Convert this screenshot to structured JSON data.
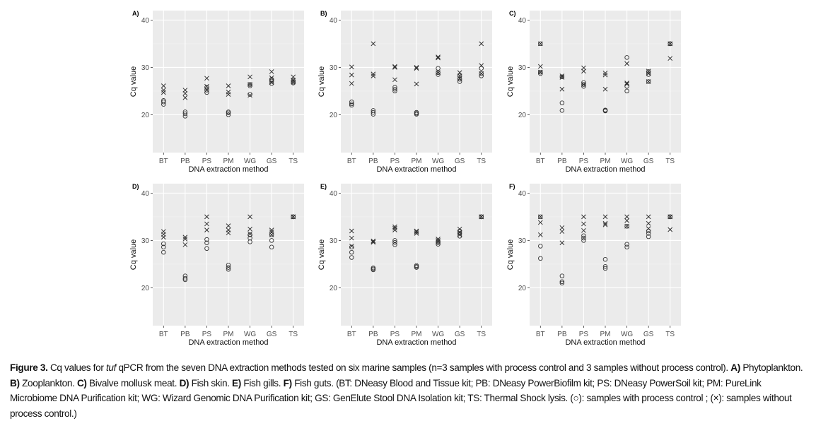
{
  "chart_data": [
    {
      "panel": "A)",
      "type": "scatter",
      "title": "",
      "xlabel": "DNA extraction method",
      "ylabel": "Cq value",
      "categories": [
        "BT",
        "PB",
        "PS",
        "PM",
        "WG",
        "GS",
        "TS"
      ],
      "yticks": [
        20,
        30,
        40
      ],
      "ylim": [
        12,
        42
      ],
      "grid": true,
      "series": [
        {
          "name": "with process control",
          "marker": "circle",
          "values": [
            [
              22.2,
              22.7,
              23.0
            ],
            [
              19.7,
              20.2,
              20.6
            ],
            [
              24.7,
              25.2,
              25.8
            ],
            [
              20.0,
              20.4,
              20.6
            ],
            [
              24.3,
              26.1,
              26.4
            ],
            [
              26.6,
              27.1,
              27.5
            ],
            [
              26.7,
              26.9,
              27.2
            ]
          ]
        },
        {
          "name": "without process control",
          "marker": "cross",
          "values": [
            [
              24.7,
              25.2,
              26.1
            ],
            [
              23.6,
              24.5,
              25.2
            ],
            [
              25.2,
              26.0,
              27.7
            ],
            [
              24.3,
              24.8,
              26.1
            ],
            [
              24.1,
              26.4,
              28.0
            ],
            [
              26.8,
              27.8,
              29.1
            ],
            [
              26.9,
              27.3,
              28.0
            ]
          ]
        }
      ]
    },
    {
      "panel": "B)",
      "type": "scatter",
      "title": "",
      "xlabel": "DNA extraction method",
      "ylabel": "Cq value",
      "categories": [
        "BT",
        "PB",
        "PS",
        "PM",
        "WG",
        "GS",
        "TS"
      ],
      "yticks": [
        20,
        30,
        40
      ],
      "ylim": [
        12,
        42
      ],
      "grid": true,
      "series": [
        {
          "name": "with process control",
          "marker": "circle",
          "values": [
            [
              22.0,
              22.3,
              22.7
            ],
            [
              20.1,
              20.5,
              20.9
            ],
            [
              25.0,
              25.4,
              25.8
            ],
            [
              20.1,
              20.3,
              20.5
            ],
            [
              28.5,
              28.9,
              29.8
            ],
            [
              27.0,
              27.5,
              28.2
            ],
            [
              28.2,
              28.7,
              29.8
            ]
          ]
        },
        {
          "name": "without process control",
          "marker": "cross",
          "values": [
            [
              26.6,
              28.4,
              30.1
            ],
            [
              28.2,
              28.6,
              35.0
            ],
            [
              27.4,
              30.0,
              30.2
            ],
            [
              26.5,
              29.8,
              30.0
            ],
            [
              28.9,
              32.0,
              32.2
            ],
            [
              27.7,
              28.2,
              28.9
            ],
            [
              28.7,
              30.4,
              35.0
            ]
          ]
        }
      ]
    },
    {
      "panel": "C)",
      "type": "scatter",
      "title": "",
      "xlabel": "DNA extraction method",
      "ylabel": "Cq value",
      "categories": [
        "BT",
        "PB",
        "PS",
        "PM",
        "WG",
        "GS",
        "TS"
      ],
      "yticks": [
        20,
        30,
        40
      ],
      "ylim": [
        12,
        42
      ],
      "grid": true,
      "series": [
        {
          "name": "with process control",
          "marker": "circle",
          "values": [
            [
              28.7,
              29.0,
              35.0
            ],
            [
              20.9,
              22.5,
              28.0
            ],
            [
              26.0,
              26.4,
              26.8
            ],
            [
              20.8,
              20.9,
              21.0
            ],
            [
              25.0,
              26.0,
              32.1
            ],
            [
              27.0,
              28.5,
              29.1
            ],
            [
              35.0,
              35.0,
              35.0
            ]
          ]
        },
        {
          "name": "without process control",
          "marker": "cross",
          "values": [
            [
              29.0,
              30.2,
              35.0
            ],
            [
              25.4,
              27.9,
              28.2
            ],
            [
              26.4,
              29.2,
              29.9
            ],
            [
              25.4,
              28.4,
              28.8
            ],
            [
              26.5,
              26.7,
              30.8
            ],
            [
              27.0,
              28.7,
              29.2
            ],
            [
              31.9,
              35.0,
              35.0
            ]
          ]
        }
      ]
    },
    {
      "panel": "D)",
      "type": "scatter",
      "title": "",
      "xlabel": "DNA extraction method",
      "ylabel": "Cq value",
      "categories": [
        "BT",
        "PB",
        "PS",
        "PM",
        "WG",
        "GS",
        "TS"
      ],
      "yticks": [
        20,
        30,
        40
      ],
      "ylim": [
        12,
        42
      ],
      "grid": true,
      "series": [
        {
          "name": "with process control",
          "marker": "circle",
          "values": [
            [
              27.5,
              28.6,
              29.3
            ],
            [
              21.7,
              22.0,
              22.5
            ],
            [
              28.3,
              29.5,
              30.2
            ],
            [
              23.9,
              24.3,
              24.8
            ],
            [
              29.7,
              30.5,
              31.2
            ],
            [
              28.6,
              30.0,
              31.2
            ],
            [
              35.0,
              35.0,
              35.0
            ]
          ]
        },
        {
          "name": "without process control",
          "marker": "cross",
          "values": [
            [
              30.7,
              31.3,
              31.9
            ],
            [
              29.1,
              30.3,
              30.7
            ],
            [
              32.2,
              33.5,
              35.0
            ],
            [
              31.6,
              32.2,
              33.1
            ],
            [
              31.4,
              32.4,
              35.0
            ],
            [
              31.2,
              31.8,
              32.2
            ],
            [
              35.0,
              35.0,
              35.0
            ]
          ]
        }
      ]
    },
    {
      "panel": "E)",
      "type": "scatter",
      "title": "",
      "xlabel": "DNA extraction method",
      "ylabel": "Cq value",
      "categories": [
        "BT",
        "PB",
        "PS",
        "PM",
        "WG",
        "GS",
        "TS"
      ],
      "yticks": [
        20,
        30,
        40
      ],
      "ylim": [
        12,
        42
      ],
      "grid": true,
      "series": [
        {
          "name": "with process control",
          "marker": "circle",
          "values": [
            [
              26.4,
              27.5,
              28.6
            ],
            [
              23.8,
              24.0,
              24.2
            ],
            [
              29.1,
              29.6,
              30.0
            ],
            [
              24.3,
              24.5,
              24.7
            ],
            [
              29.2,
              29.5,
              29.8
            ],
            [
              30.9,
              31.5,
              32.0
            ],
            [
              35.0,
              35.0,
              35.0
            ]
          ]
        },
        {
          "name": "without process control",
          "marker": "cross",
          "values": [
            [
              28.8,
              30.5,
              32.0
            ],
            [
              29.6,
              29.8,
              29.9
            ],
            [
              32.2,
              32.6,
              32.9
            ],
            [
              31.5,
              31.8,
              32.0
            ],
            [
              29.7,
              30.0,
              30.3
            ],
            [
              31.2,
              31.7,
              32.4
            ],
            [
              35.0,
              35.0,
              35.0
            ]
          ]
        }
      ]
    },
    {
      "panel": "F)",
      "type": "scatter",
      "title": "",
      "xlabel": "DNA extraction method",
      "ylabel": "Cq value",
      "categories": [
        "BT",
        "PB",
        "PS",
        "PM",
        "WG",
        "GS",
        "TS"
      ],
      "yticks": [
        20,
        30,
        40
      ],
      "ylim": [
        12,
        42
      ],
      "grid": true,
      "series": [
        {
          "name": "with process control",
          "marker": "circle",
          "values": [
            [
              26.2,
              28.8,
              35.0
            ],
            [
              21.0,
              21.3,
              22.5
            ],
            [
              30.0,
              30.5,
              31.0
            ],
            [
              24.1,
              24.5,
              26.0
            ],
            [
              28.6,
              29.2,
              33.0
            ],
            [
              30.8,
              31.5,
              32.0
            ],
            [
              35.0,
              35.0,
              35.0
            ]
          ]
        },
        {
          "name": "without process control",
          "marker": "cross",
          "values": [
            [
              31.2,
              33.8,
              35.0
            ],
            [
              29.5,
              31.9,
              32.7
            ],
            [
              32.1,
              33.5,
              35.0
            ],
            [
              33.3,
              33.6,
              35.0
            ],
            [
              33.0,
              34.2,
              35.0
            ],
            [
              32.5,
              33.6,
              35.0
            ],
            [
              32.3,
              35.0,
              35.0
            ]
          ]
        }
      ]
    }
  ],
  "caption": {
    "figure_label": "Figure 3.",
    "intro_1": "Cq values for",
    "gene": "tuf",
    "intro_2": "qPCR from the seven DNA extraction methods tested on six marine samples (n=3 samples with process control and 3 samples without process control).",
    "a_label": "A)",
    "a_text": "Phytoplankton.",
    "b_label": "B)",
    "b_text": "Zooplankton.",
    "c_label": "C)",
    "c_text": "Bivalve mollusk meat.",
    "d_label": "D)",
    "d_text": "Fish skin.",
    "e_label": "E)",
    "e_text": "Fish gills.",
    "f_label": "F)",
    "f_text": "Fish guts.",
    "abbreviations": "(BT: DNeasy Blood and Tissue kit; PB: DNeasy PowerBiofilm kit; PS: DNeasy PowerSoil kit; PM: PureLink Microbiome DNA Purification kit; WG: Wizard Genomic DNA Purification kit; GS: GenElute Stool DNA Isolation kit; TS: Thermal Shock lysis. (○): samples with process control ; (×): samples without process control.)"
  },
  "colors": {
    "panel_bg": "#ebebeb",
    "grid_major": "#ffffff",
    "grid_minor": "#f3f3f3",
    "marker": "#333333",
    "text": "#4d4d4d",
    "title": "#000000"
  }
}
